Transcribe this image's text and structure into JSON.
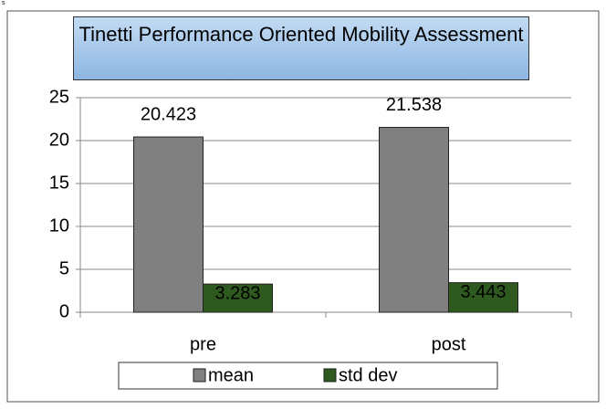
{
  "corner_text": "s",
  "chart_data": {
    "type": "bar",
    "title": "Tinetti Performance Oriented Mobility Assessment",
    "categories": [
      "pre",
      "post"
    ],
    "series": [
      {
        "name": "mean",
        "color": "#808080",
        "values": [
          20.423,
          21.538
        ]
      },
      {
        "name": "std dev",
        "color": "#2f5a1f",
        "values": [
          3.283,
          3.443
        ]
      }
    ],
    "ylim": [
      0,
      25
    ],
    "yticks": [
      0,
      5,
      10,
      15,
      20,
      25
    ],
    "grid": true,
    "legend": "bottom"
  }
}
